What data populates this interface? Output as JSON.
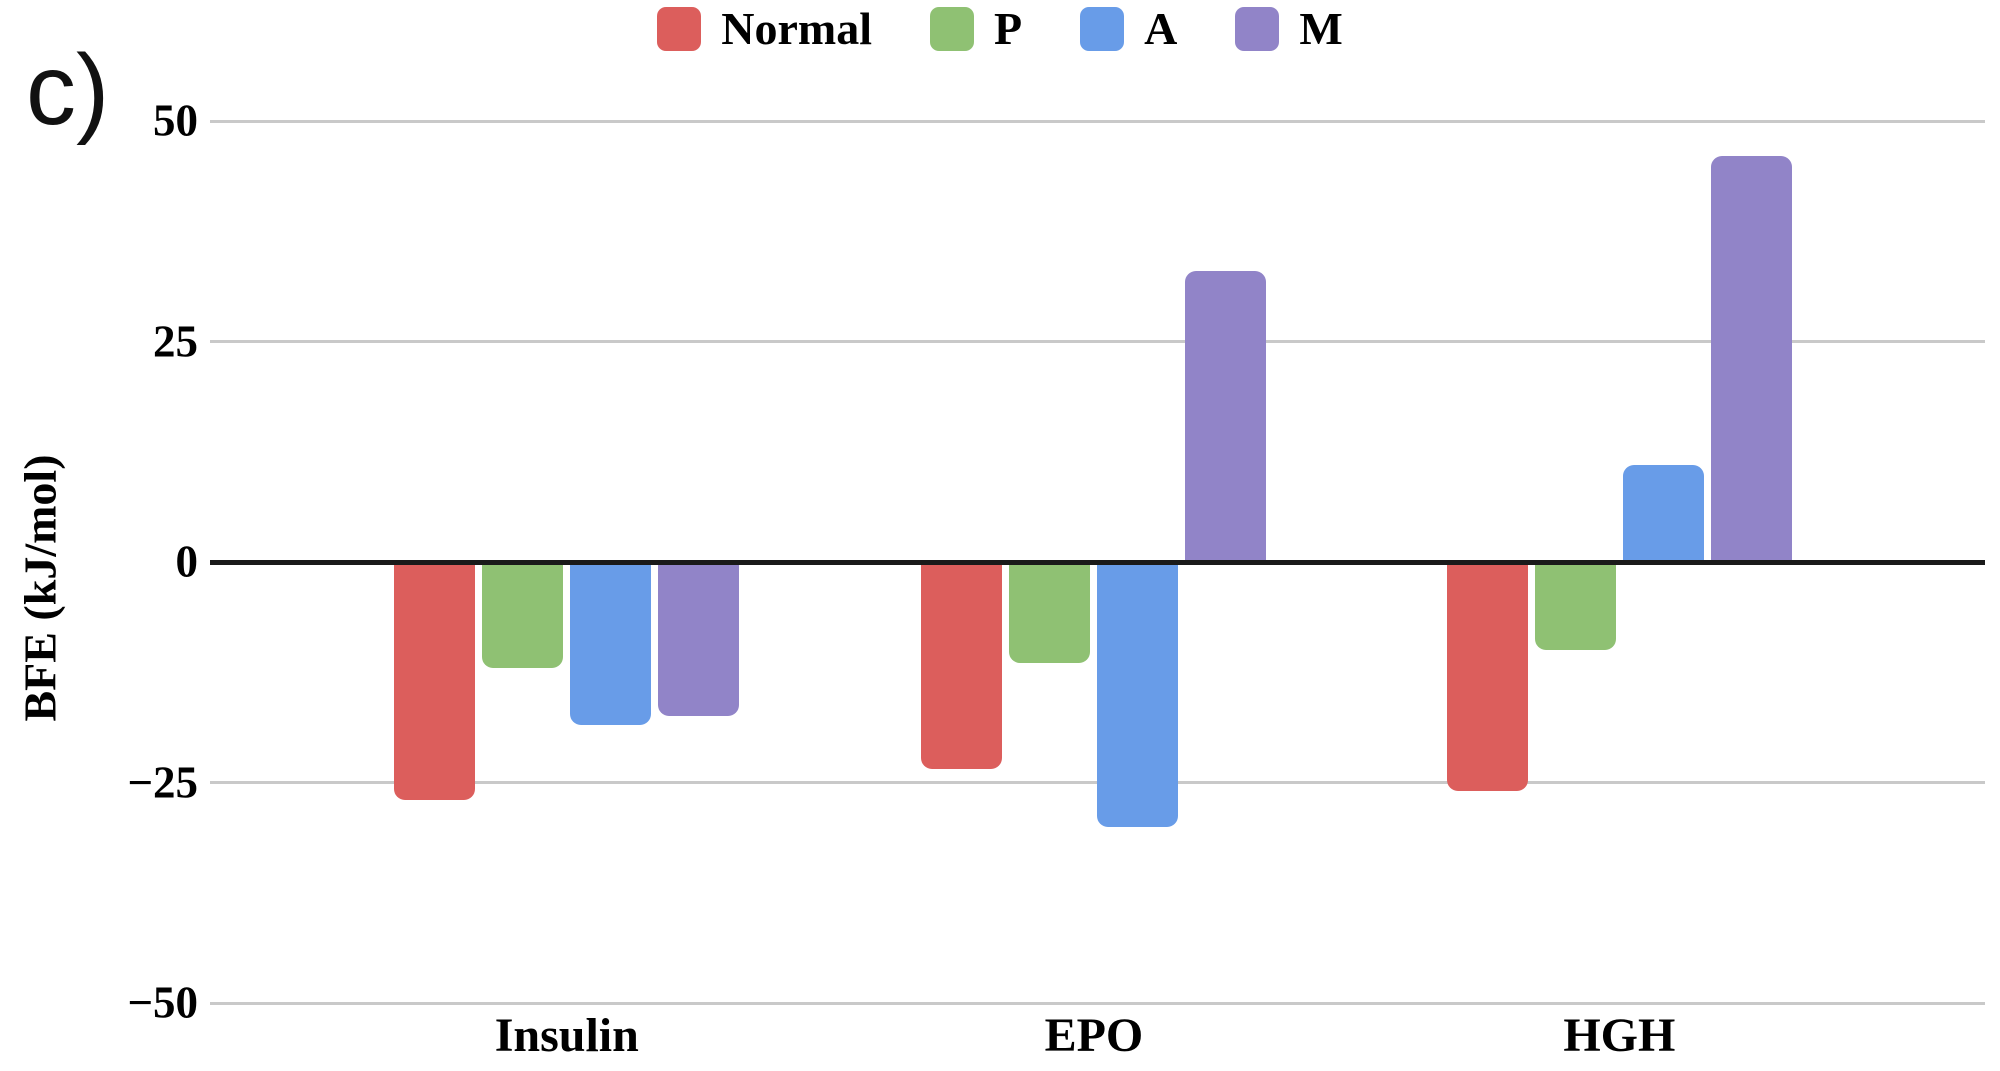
{
  "panel_label": "c)",
  "chart_data": {
    "type": "bar",
    "title": "",
    "xlabel": "",
    "ylabel": "BFE (kJ/mol)",
    "categories": [
      "Insulin",
      "EPO",
      "HGH"
    ],
    "series": [
      {
        "name": "Normal",
        "color": "#dc5e5c",
        "values": [
          -27,
          -23.5,
          -26
        ]
      },
      {
        "name": "P",
        "color": "#8fc173",
        "values": [
          -12,
          -11.5,
          -10
        ]
      },
      {
        "name": "A",
        "color": "#689ce8",
        "values": [
          -18.5,
          -30,
          11
        ]
      },
      {
        "name": "M",
        "color": "#9184c8",
        "values": [
          -17.5,
          33,
          46
        ]
      }
    ],
    "ylim": [
      -50,
      50
    ],
    "yticks": [
      50,
      25,
      0,
      -25,
      -50
    ],
    "ytick_labels": [
      "50",
      "25",
      "0",
      "−25",
      "−50"
    ],
    "grid": true,
    "legend_position": "top",
    "zero_line_color": "#1a1a1a",
    "gridline_color": "#c9c9c9"
  }
}
